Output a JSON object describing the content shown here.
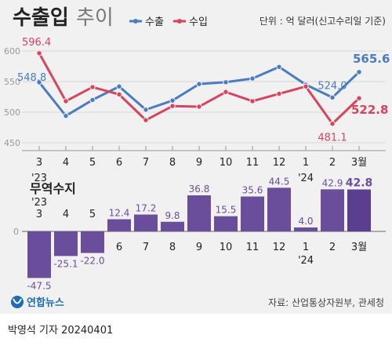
{
  "header": {
    "title": "수출입",
    "title_suffix": "추이",
    "unit_note": "단위 : 억 달러(신고수리일 기준)"
  },
  "chart_data": [
    {
      "type": "line",
      "x": [
        "3",
        "4",
        "5",
        "6",
        "7",
        "8",
        "9",
        "10",
        "11",
        "12",
        "1",
        "2",
        "3월"
      ],
      "year_labels": [
        {
          "index": 0,
          "text": "'23"
        },
        {
          "index": 10,
          "text": "'24"
        }
      ],
      "series": [
        {
          "name": "수출",
          "color": "#4a7cc1",
          "values": [
            548.8,
            494,
            520,
            542,
            504,
            519,
            546,
            549,
            555,
            574,
            545,
            524.0,
            565.6
          ],
          "labeled": [
            0,
            11,
            12
          ]
        },
        {
          "name": "수입",
          "color": "#d6445e",
          "values": [
            596.4,
            518,
            541,
            529,
            487,
            510,
            509,
            533,
            518,
            530,
            542,
            481.1,
            522.8
          ],
          "labeled": [
            0,
            11,
            12
          ]
        }
      ],
      "ylim": [
        450,
        600
      ],
      "yticks": [
        450,
        500,
        550,
        600
      ],
      "grid": true,
      "legend": "top-center"
    },
    {
      "type": "bar",
      "title": "무역수지",
      "categories": [
        "3",
        "4",
        "5",
        "6",
        "7",
        "8",
        "9",
        "10",
        "11",
        "12",
        "1",
        "2",
        "3월"
      ],
      "values": [
        -47.5,
        -25.1,
        -22.0,
        12.4,
        17.2,
        9.8,
        36.8,
        15.5,
        35.6,
        44.5,
        4.0,
        42.9,
        42.8
      ],
      "year_labels": [
        {
          "index": 0,
          "text": "'23"
        },
        {
          "index": 10,
          "text": "'24"
        }
      ],
      "zero_label": "0",
      "color": "#6a4e9b",
      "last_color": "#5a3f90"
    }
  ],
  "footer": {
    "logo": "연합뉴스",
    "source": "자료: 산업통상자원부, 관세청",
    "credit": "박영석 기자  20240401"
  }
}
